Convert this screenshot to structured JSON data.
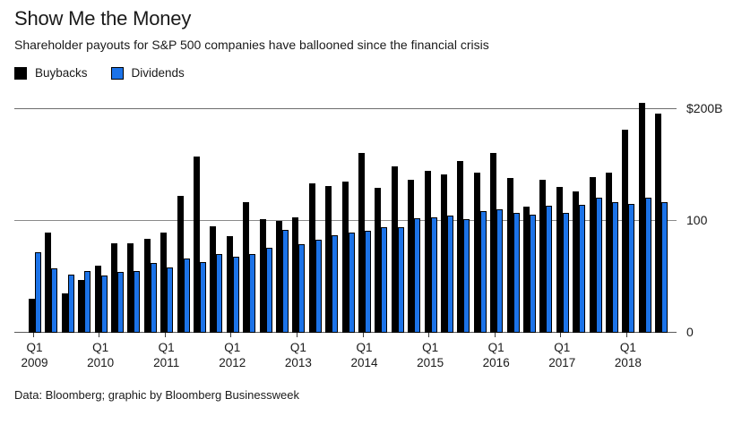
{
  "header": {
    "title": "Show Me the Money",
    "subtitle": "Shareholder payouts for S&P 500 companies have ballooned since the financial crisis"
  },
  "legend": {
    "items": [
      {
        "label": "Buybacks",
        "color": "#000000"
      },
      {
        "label": "Dividends",
        "color": "#1c73e8"
      }
    ]
  },
  "footer": {
    "source": "Data: Bloomberg; graphic by Bloomberg Businessweek"
  },
  "chart_data": {
    "type": "bar",
    "title": "Show Me the Money",
    "subtitle": "Shareholder payouts for S&P 500 companies have ballooned since the financial crisis",
    "unit": "$B",
    "ylim": [
      0,
      200
    ],
    "grid": "horizontal",
    "legend_position": "top-left",
    "categories": [
      "Q1 2009",
      "Q2 2009",
      "Q3 2009",
      "Q4 2009",
      "Q1 2010",
      "Q2 2010",
      "Q3 2010",
      "Q4 2010",
      "Q1 2011",
      "Q2 2011",
      "Q3 2011",
      "Q4 2011",
      "Q1 2012",
      "Q2 2012",
      "Q3 2012",
      "Q4 2012",
      "Q1 2013",
      "Q2 2013",
      "Q3 2013",
      "Q4 2013",
      "Q1 2014",
      "Q2 2014",
      "Q3 2014",
      "Q4 2014",
      "Q1 2015",
      "Q2 2015",
      "Q3 2015",
      "Q4 2015",
      "Q1 2016",
      "Q2 2016",
      "Q3 2016",
      "Q4 2016",
      "Q1 2017",
      "Q2 2017",
      "Q3 2017",
      "Q4 2017",
      "Q1 2018",
      "Q2 2018",
      "Q3 2018"
    ],
    "series": [
      {
        "name": "Buybacks",
        "color": "#000000",
        "values": [
          30,
          89,
          35,
          47,
          60,
          80,
          80,
          84,
          89,
          122,
          157,
          95,
          86,
          116,
          101,
          100,
          103,
          133,
          131,
          135,
          160,
          129,
          148,
          136,
          144,
          141,
          153,
          143,
          160,
          138,
          112,
          136,
          130,
          126,
          139,
          143,
          181,
          205,
          195
        ]
      },
      {
        "name": "Dividends",
        "color": "#1c73e8",
        "values": [
          72,
          57,
          52,
          55,
          51,
          54,
          55,
          62,
          58,
          66,
          63,
          70,
          68,
          70,
          76,
          92,
          79,
          83,
          87,
          89,
          91,
          94,
          94,
          102,
          103,
          104,
          101,
          108,
          110,
          107,
          105,
          113,
          107,
          114,
          120,
          116,
          115,
          120,
          116
        ]
      }
    ],
    "yticks": [
      {
        "value": 200,
        "label": "$200B"
      },
      {
        "value": 100,
        "label": "100"
      },
      {
        "value": 0,
        "label": "0"
      }
    ],
    "x_tick_years": [
      "2009",
      "2010",
      "2011",
      "2012",
      "2013",
      "2014",
      "2015",
      "2016",
      "2017",
      "2018"
    ],
    "x_tick_quarter_label": "Q1"
  }
}
